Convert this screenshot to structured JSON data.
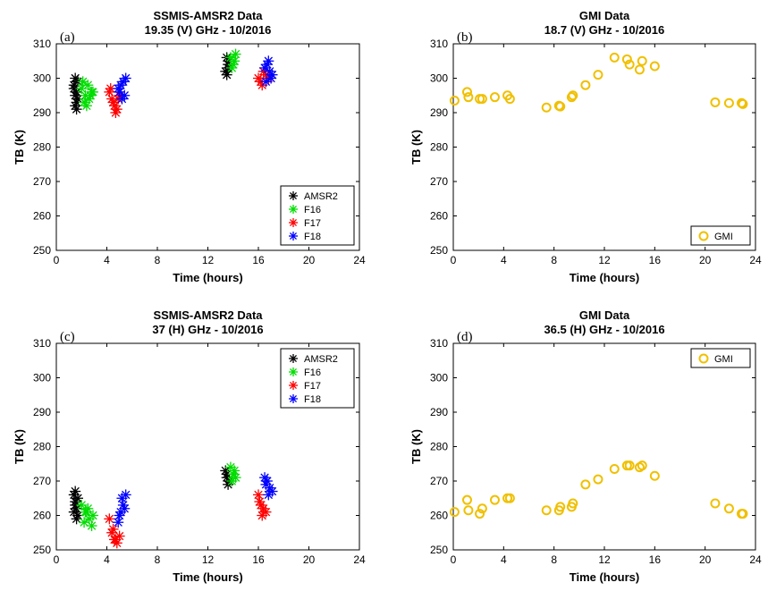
{
  "chart_data": [
    {
      "type": "scatter",
      "panel": "(a)",
      "title": "SSMIS-AMSR2 Data",
      "subtitle": "19.35 (V) GHz - 10/2016",
      "xlabel": "Time (hours)",
      "ylabel": "TB (K)",
      "xlim": [
        0,
        24
      ],
      "ylim": [
        250,
        310
      ],
      "xticks": [
        "0",
        "4",
        "8",
        "12",
        "16",
        "20",
        "24"
      ],
      "yticks": [
        "250",
        "260",
        "270",
        "280",
        "290",
        "300",
        "310"
      ],
      "legend": "bottom-right",
      "series": [
        {
          "name": "AMSR2",
          "color": "#000000",
          "marker": "star",
          "x": [
            1.4,
            1.5,
            1.6,
            1.7,
            1.5,
            1.6,
            1.4,
            1.7,
            1.5,
            1.6,
            13.5,
            13.6,
            13.4,
            13.7,
            13.5,
            13.6
          ],
          "y": [
            297,
            295,
            293,
            299,
            292,
            296,
            298,
            294,
            300,
            291,
            306,
            304,
            302,
            305,
            301,
            303
          ]
        },
        {
          "name": "F16",
          "color": "#00dd00",
          "marker": "star",
          "x": [
            2.0,
            2.3,
            2.6,
            2.9,
            2.2,
            2.5,
            2.8,
            2.1,
            2.4,
            2.7,
            13.8,
            14.0,
            14.2,
            13.9,
            14.1
          ],
          "y": [
            297,
            295,
            294,
            296,
            293,
            298,
            296,
            299,
            292,
            295,
            306,
            304,
            307,
            303,
            305
          ]
        },
        {
          "name": "F17",
          "color": "#ff0000",
          "marker": "star",
          "x": [
            4.2,
            4.4,
            4.6,
            4.8,
            5.0,
            4.3,
            4.5,
            4.7,
            4.9,
            16.0,
            16.2,
            16.4,
            16.6,
            16.8,
            16.3
          ],
          "y": [
            296,
            294,
            292,
            291,
            295,
            297,
            293,
            290,
            294,
            300,
            299,
            302,
            301,
            300,
            298
          ]
        },
        {
          "name": "F18",
          "color": "#0000ff",
          "marker": "star",
          "x": [
            4.9,
            5.1,
            5.3,
            5.5,
            5.0,
            5.2,
            5.4,
            16.5,
            16.7,
            16.9,
            17.1,
            16.6,
            16.8,
            17.0
          ],
          "y": [
            297,
            298,
            299,
            300,
            296,
            294,
            295,
            303,
            304,
            302,
            301,
            299,
            305,
            300
          ]
        }
      ]
    },
    {
      "type": "scatter",
      "panel": "(b)",
      "title": "GMI Data",
      "subtitle": "18.7 (V) GHz - 10/2016",
      "xlabel": "Time (hours)",
      "ylabel": "TB (K)",
      "xlim": [
        0,
        24
      ],
      "ylim": [
        250,
        310
      ],
      "xticks": [
        "0",
        "4",
        "8",
        "12",
        "16",
        "20",
        "24"
      ],
      "yticks": [
        "250",
        "260",
        "270",
        "280",
        "290",
        "300",
        "310"
      ],
      "legend": "bottom-right",
      "series": [
        {
          "name": "GMI",
          "color": "#f0c000",
          "marker": "circle",
          "x": [
            0.1,
            1.1,
            1.2,
            2.1,
            2.3,
            3.3,
            4.3,
            4.5,
            7.4,
            8.4,
            8.5,
            9.4,
            9.5,
            10.5,
            11.5,
            12.8,
            13.8,
            14.0,
            14.8,
            15.0,
            16.0,
            20.8,
            21.9,
            22.9,
            23.0
          ],
          "y": [
            293.5,
            296,
            294.5,
            294,
            294,
            294.5,
            295,
            294,
            291.5,
            292,
            291.8,
            294.5,
            295,
            298,
            301,
            306,
            305.5,
            304,
            302.5,
            305,
            303.5,
            293,
            292.8,
            292.8,
            292.5
          ]
        }
      ]
    },
    {
      "type": "scatter",
      "panel": "(c)",
      "title": "SSMIS-AMSR2 Data",
      "subtitle": "37 (H) GHz - 10/2016",
      "xlabel": "Time (hours)",
      "ylabel": "TB (K)",
      "xlim": [
        0,
        24
      ],
      "ylim": [
        250,
        310
      ],
      "xticks": [
        "0",
        "4",
        "8",
        "12",
        "16",
        "20",
        "24"
      ],
      "yticks": [
        "250",
        "260",
        "270",
        "280",
        "290",
        "300",
        "310"
      ],
      "legend": "top-right",
      "series": [
        {
          "name": "AMSR2",
          "color": "#000000",
          "marker": "star",
          "x": [
            1.4,
            1.5,
            1.6,
            1.7,
            1.5,
            1.6,
            1.4,
            1.7,
            1.5,
            13.4,
            13.5,
            13.6,
            13.7,
            13.5
          ],
          "y": [
            266,
            264,
            262,
            260,
            263,
            259,
            261,
            265,
            267,
            273,
            271,
            269,
            270,
            272
          ]
        },
        {
          "name": "F16",
          "color": "#00dd00",
          "marker": "star",
          "x": [
            2.0,
            2.3,
            2.6,
            2.9,
            2.2,
            2.5,
            2.8,
            2.4,
            13.8,
            14.0,
            14.2,
            13.9,
            14.1
          ],
          "y": [
            263,
            261,
            259,
            260,
            258,
            262,
            257,
            261,
            274,
            272,
            271,
            270,
            273
          ]
        },
        {
          "name": "F17",
          "color": "#ff0000",
          "marker": "star",
          "x": [
            4.2,
            4.4,
            4.6,
            4.8,
            5.0,
            4.5,
            4.7,
            16.0,
            16.2,
            16.4,
            16.6,
            16.1,
            16.3
          ],
          "y": [
            259,
            255,
            253,
            252,
            254,
            256,
            253,
            266,
            263,
            262,
            261,
            264,
            260
          ]
        },
        {
          "name": "F18",
          "color": "#0000ff",
          "marker": "star",
          "x": [
            4.9,
            5.1,
            5.3,
            5.5,
            5.0,
            5.2,
            5.4,
            16.5,
            16.7,
            16.9,
            17.1,
            16.6,
            16.8
          ],
          "y": [
            258,
            261,
            263,
            266,
            260,
            265,
            262,
            271,
            270,
            268,
            267,
            269,
            266
          ]
        }
      ]
    },
    {
      "type": "scatter",
      "panel": "(d)",
      "title": "GMI Data",
      "subtitle": "36.5 (H) GHz - 10/2016",
      "xlabel": "Time (hours)",
      "ylabel": "TB (K)",
      "xlim": [
        0,
        24
      ],
      "ylim": [
        250,
        310
      ],
      "xticks": [
        "0",
        "4",
        "8",
        "12",
        "16",
        "20",
        "24"
      ],
      "yticks": [
        "250",
        "260",
        "270",
        "280",
        "290",
        "300",
        "310"
      ],
      "legend": "top-right",
      "series": [
        {
          "name": "GMI",
          "color": "#f0c000",
          "marker": "circle",
          "x": [
            0.1,
            1.1,
            1.2,
            2.1,
            2.3,
            3.3,
            4.3,
            4.5,
            7.4,
            8.4,
            8.5,
            9.4,
            9.5,
            10.5,
            11.5,
            12.8,
            13.8,
            14.0,
            14.8,
            15.0,
            16.0,
            20.8,
            21.9,
            22.9,
            23.0
          ],
          "y": [
            261,
            264.5,
            261.5,
            260.5,
            262,
            264.5,
            265,
            265,
            261.5,
            261.5,
            262.5,
            262.5,
            263.5,
            269,
            270.5,
            273.5,
            274.5,
            274.5,
            274,
            274.5,
            271.5,
            263.5,
            262,
            260.5,
            260.5
          ]
        }
      ]
    }
  ]
}
